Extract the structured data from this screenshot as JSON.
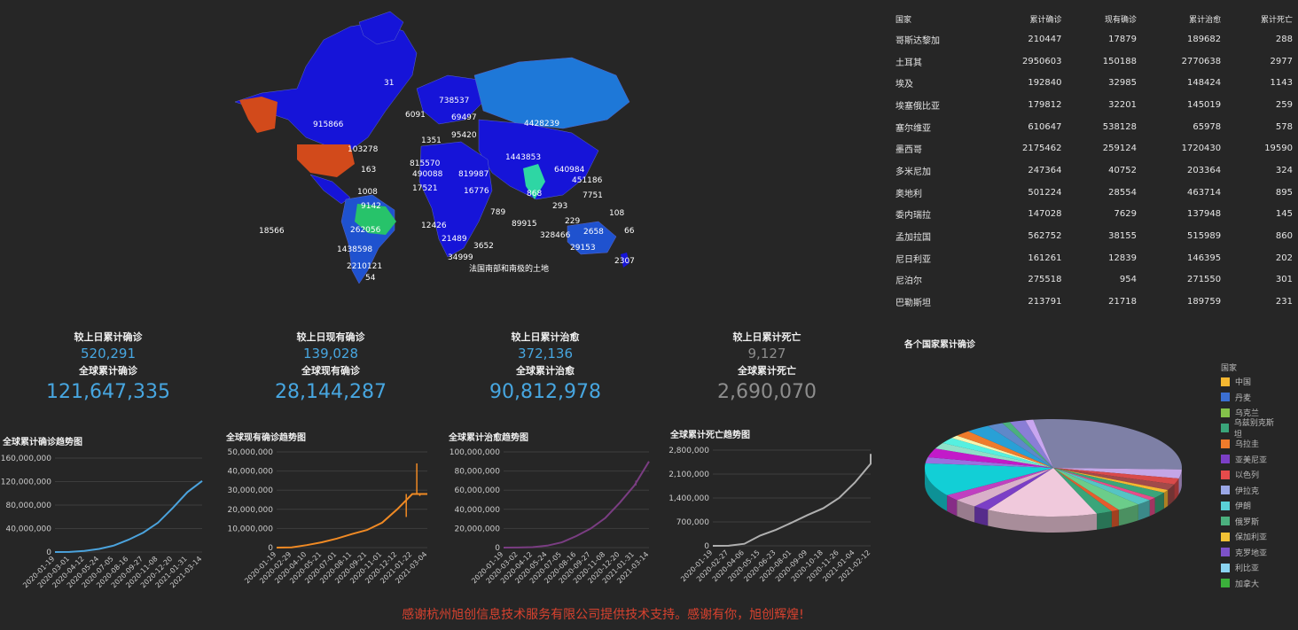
{
  "map": {
    "labels": [
      "31",
      "915866",
      "103278",
      "163",
      "1008",
      "9142",
      "262056",
      "1438598",
      "2210121",
      "54",
      "18566",
      "738537",
      "6091",
      "69497",
      "95420",
      "1351",
      "815570",
      "490088",
      "17521",
      "819987",
      "16776",
      "4428239",
      "1443853",
      "640984",
      "451186",
      "868",
      "7751",
      "293",
      "229",
      "108",
      "2658",
      "66",
      "29153",
      "328466",
      "89915",
      "12426",
      "21489",
      "3652",
      "34999",
      "789",
      "2307",
      "法国南部和南极的土地"
    ]
  },
  "table": {
    "headers": [
      "国家",
      "累计确诊",
      "现有确诊",
      "累计治愈",
      "累计死亡"
    ],
    "rows": [
      [
        "哥斯达黎加",
        "210447",
        "17879",
        "189682",
        "288"
      ],
      [
        "土耳其",
        "2950603",
        "150188",
        "2770638",
        "2977"
      ],
      [
        "埃及",
        "192840",
        "32985",
        "148424",
        "1143"
      ],
      [
        "埃塞俄比亚",
        "179812",
        "32201",
        "145019",
        "259"
      ],
      [
        "塞尔维亚",
        "610647",
        "538128",
        "65978",
        "578"
      ],
      [
        "墨西哥",
        "2175462",
        "259124",
        "1720430",
        "19590"
      ],
      [
        "多米尼加",
        "247364",
        "40752",
        "203364",
        "324"
      ],
      [
        "奥地利",
        "501224",
        "28554",
        "463714",
        "895"
      ],
      [
        "委内瑞拉",
        "147028",
        "7629",
        "137948",
        "145"
      ],
      [
        "孟加拉国",
        "562752",
        "38155",
        "515989",
        "860"
      ],
      [
        "尼日利亚",
        "161261",
        "12839",
        "146395",
        "202"
      ],
      [
        "尼泊尔",
        "275518",
        "954",
        "271550",
        "301"
      ],
      [
        "巴勒斯坦",
        "213791",
        "21718",
        "189759",
        "231"
      ]
    ]
  },
  "stats": [
    {
      "delta_label": "较上日累计确诊",
      "delta": "520,291",
      "total_label": "全球累计确诊",
      "total": "121,647,335"
    },
    {
      "delta_label": "较上日现有确诊",
      "delta": "139,028",
      "total_label": "全球现有确诊",
      "total": "28,144,287"
    },
    {
      "delta_label": "较上日累计治愈",
      "delta": "372,136",
      "total_label": "全球累计治愈",
      "total": "90,812,978"
    },
    {
      "delta_label": "较上日累计死亡",
      "delta": "9,127",
      "total_label": "全球累计死亡",
      "total": "2,690,070"
    }
  ],
  "chart_data": [
    {
      "type": "line",
      "title": "全球累计确诊趋势图",
      "color": "#4ba3dd",
      "x": [
        "2020-01-19",
        "2020-03-01",
        "2020-04-12",
        "2020-05-24",
        "2020-07-05",
        "2020-08-16",
        "2020-09-27",
        "2020-11-08",
        "2020-12-20",
        "2021-01-31",
        "2021-03-14"
      ],
      "y": [
        0,
        100000,
        1800000,
        5300000,
        11000000,
        21000000,
        33000000,
        50000000,
        75000000,
        102000000,
        121000000
      ],
      "yticks": [
        "0",
        "40,000,000",
        "80,000,000",
        "120,000,000",
        "160,000,000"
      ],
      "ylim": [
        0,
        160000000
      ],
      "grid": true
    },
    {
      "type": "line",
      "title": "全球现有确诊趋势图",
      "color": "#f08a24",
      "x": [
        "2020-01-19",
        "2020-02-29",
        "2020-04-10",
        "2020-05-21",
        "2020-07-01",
        "2020-08-11",
        "2020-09-21",
        "2020-11-01",
        "2020-12-12",
        "2021-01-22",
        "2021-03-04"
      ],
      "y": [
        0,
        70000,
        1300000,
        2800000,
        4700000,
        7100000,
        9200000,
        13000000,
        20000000,
        28000000,
        28000000
      ],
      "spikes": [
        [
          0.86,
          16000000
        ],
        [
          0.93,
          44000000
        ],
        [
          0.95,
          27000000
        ]
      ],
      "yticks": [
        "0",
        "10,000,000",
        "20,000,000",
        "30,000,000",
        "40,000,000",
        "50,000,000"
      ],
      "ylim": [
        0,
        50000000
      ],
      "grid": true
    },
    {
      "type": "line",
      "title": "全球累计治愈趋势图",
      "color": "#7a3d82",
      "x": [
        "2020-01-19",
        "2020-03-02",
        "2020-04-12",
        "2020-05-24",
        "2020-07-05",
        "2020-08-16",
        "2020-09-27",
        "2020-11-08",
        "2020-12-20",
        "2021-01-31",
        "2021-03-14"
      ],
      "y": [
        0,
        50000,
        500000,
        2000000,
        5500000,
        12000000,
        20000000,
        31000000,
        47000000,
        65000000,
        90000000
      ],
      "spikes": [
        [
          0.91,
          70000000
        ]
      ],
      "yticks": [
        "0",
        "20,000,000",
        "40,000,000",
        "60,000,000",
        "80,000,000",
        "100,000,000"
      ],
      "ylim": [
        0,
        100000000
      ],
      "grid": true
    },
    {
      "type": "line",
      "title": "全球累计死亡趋势图",
      "color": "#b0b0b0",
      "x": [
        "2020-01-19",
        "2020-02-27",
        "2020-04-06",
        "2020-05-15",
        "2020-06-23",
        "2020-08-01",
        "2020-09-09",
        "2020-10-18",
        "2020-11-26",
        "2021-01-04",
        "2021-02-12"
      ],
      "y": [
        0,
        2000,
        60000,
        300000,
        470000,
        680000,
        900000,
        1100000,
        1400000,
        1850000,
        2400000
      ],
      "extra_end": 2690000,
      "yticks": [
        "0",
        "700,000",
        "1,400,000",
        "2,100,000",
        "2,800,000"
      ],
      "ylim": [
        0,
        2800000
      ],
      "grid": true
    },
    {
      "type": "pie",
      "title": "各个国家累计确诊",
      "legend_title": "国家",
      "legend": [
        {
          "name": "中国",
          "color": "#f5b731"
        },
        {
          "name": "丹麦",
          "color": "#3b6fd1"
        },
        {
          "name": "乌克兰",
          "color": "#84c24a"
        },
        {
          "name": "乌兹别克斯坦",
          "color": "#3aa57a"
        },
        {
          "name": "乌拉圭",
          "color": "#ef7b2b"
        },
        {
          "name": "亚美尼亚",
          "color": "#7b3fc6"
        },
        {
          "name": "以色列",
          "color": "#e54b4b"
        },
        {
          "name": "伊拉克",
          "color": "#9aa7e6"
        },
        {
          "name": "伊朗",
          "color": "#5ad0d6"
        },
        {
          "name": "俄罗斯",
          "color": "#4bb07e"
        },
        {
          "name": "保加利亚",
          "color": "#f2c235"
        },
        {
          "name": "克罗地亚",
          "color": "#7d52c9"
        },
        {
          "name": "利比亚",
          "color": "#8ad4f0"
        },
        {
          "name": "加拿大",
          "color": "#3bb03b"
        }
      ],
      "slices": [
        {
          "value": 28,
          "color": "#7e80a6"
        },
        {
          "value": 3,
          "color": "#c4a6e6"
        },
        {
          "value": 2,
          "color": "#d94a4a"
        },
        {
          "value": 2,
          "color": "#a14a4a"
        },
        {
          "value": 1,
          "color": "#f5b731"
        },
        {
          "value": 2,
          "color": "#3aa57a"
        },
        {
          "value": 1,
          "color": "#e84c8a"
        },
        {
          "value": 2,
          "color": "#55c4c4"
        },
        {
          "value": 3,
          "color": "#6bcd8a"
        },
        {
          "value": 1,
          "color": "#e65c2e"
        },
        {
          "value": 2,
          "color": "#3aa57a"
        },
        {
          "value": 14,
          "color": "#f0c9dc"
        },
        {
          "value": 2,
          "color": "#7b3fc6"
        },
        {
          "value": 3,
          "color": "#d9b0c9"
        },
        {
          "value": 2,
          "color": "#c040c0"
        },
        {
          "value": 11,
          "color": "#12cfd6"
        },
        {
          "value": 2,
          "color": "#9b6fe0"
        },
        {
          "value": 3,
          "color": "#c21ac9"
        },
        {
          "value": 2,
          "color": "#8fe0c8"
        },
        {
          "value": 2,
          "color": "#55f0e0"
        },
        {
          "value": 1,
          "color": "#f5f5b0"
        },
        {
          "value": 2,
          "color": "#ef7b2b"
        },
        {
          "value": 3,
          "color": "#29a0d6"
        },
        {
          "value": 2,
          "color": "#5f88c9"
        },
        {
          "value": 1,
          "color": "#4bb07e"
        },
        {
          "value": 2,
          "color": "#8a7ed6"
        },
        {
          "value": 1,
          "color": "#c9a6f0"
        }
      ]
    }
  ],
  "footer": "感谢杭州旭创信息技术服务有限公司提供技术支持。感谢有你，旭创辉煌!"
}
